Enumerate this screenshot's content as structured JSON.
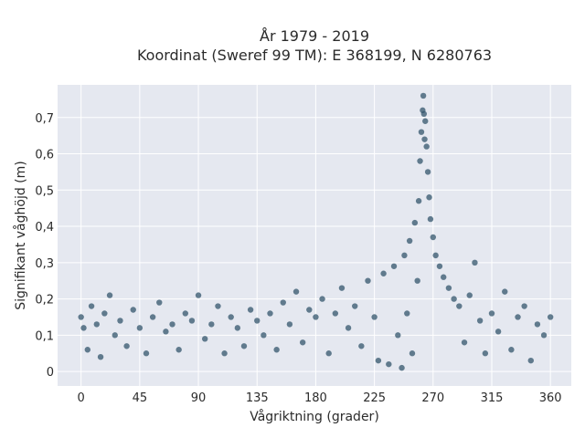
{
  "chart_data": {
    "type": "scatter",
    "title": "År 1979 - 2019",
    "subtitle": "Koordinat (Sweref 99 TM): E 368199, N 6280763",
    "xlabel": "Vågriktning (grader)",
    "ylabel": "Signifikant våghöjd (m)",
    "xlim": [
      -18,
      376
    ],
    "ylim": [
      -0.04,
      0.79
    ],
    "xticks": [
      0,
      45,
      90,
      135,
      180,
      225,
      270,
      315,
      360
    ],
    "xtick_labels": [
      "0",
      "45",
      "90",
      "135",
      "180",
      "225",
      "270",
      "315",
      "360"
    ],
    "yticks": [
      0,
      0.1,
      0.2,
      0.3,
      0.4,
      0.5,
      0.6,
      0.7
    ],
    "ytick_labels": [
      "0",
      "0,1",
      "0,2",
      "0,3",
      "0,4",
      "0,5",
      "0,6",
      "0,7"
    ],
    "grid": true,
    "background": "#e5e8f0",
    "marker_color": "#33566c",
    "points": [
      [
        0,
        0.15
      ],
      [
        2,
        0.12
      ],
      [
        5,
        0.06
      ],
      [
        8,
        0.18
      ],
      [
        12,
        0.13
      ],
      [
        15,
        0.04
      ],
      [
        18,
        0.16
      ],
      [
        22,
        0.21
      ],
      [
        26,
        0.1
      ],
      [
        30,
        0.14
      ],
      [
        35,
        0.07
      ],
      [
        40,
        0.17
      ],
      [
        45,
        0.12
      ],
      [
        50,
        0.05
      ],
      [
        55,
        0.15
      ],
      [
        60,
        0.19
      ],
      [
        65,
        0.11
      ],
      [
        70,
        0.13
      ],
      [
        75,
        0.06
      ],
      [
        80,
        0.16
      ],
      [
        85,
        0.14
      ],
      [
        90,
        0.21
      ],
      [
        95,
        0.09
      ],
      [
        100,
        0.13
      ],
      [
        105,
        0.18
      ],
      [
        110,
        0.05
      ],
      [
        115,
        0.15
      ],
      [
        120,
        0.12
      ],
      [
        125,
        0.07
      ],
      [
        130,
        0.17
      ],
      [
        135,
        0.14
      ],
      [
        140,
        0.1
      ],
      [
        145,
        0.16
      ],
      [
        150,
        0.06
      ],
      [
        155,
        0.19
      ],
      [
        160,
        0.13
      ],
      [
        165,
        0.22
      ],
      [
        170,
        0.08
      ],
      [
        175,
        0.17
      ],
      [
        180,
        0.15
      ],
      [
        185,
        0.2
      ],
      [
        190,
        0.05
      ],
      [
        195,
        0.16
      ],
      [
        200,
        0.23
      ],
      [
        205,
        0.12
      ],
      [
        210,
        0.18
      ],
      [
        215,
        0.07
      ],
      [
        220,
        0.25
      ],
      [
        225,
        0.15
      ],
      [
        228,
        0.03
      ],
      [
        232,
        0.27
      ],
      [
        236,
        0.02
      ],
      [
        240,
        0.29
      ],
      [
        243,
        0.1
      ],
      [
        246,
        0.01
      ],
      [
        248,
        0.32
      ],
      [
        250,
        0.16
      ],
      [
        252,
        0.36
      ],
      [
        254,
        0.05
      ],
      [
        256,
        0.41
      ],
      [
        258,
        0.25
      ],
      [
        259,
        0.47
      ],
      [
        260,
        0.58
      ],
      [
        261,
        0.66
      ],
      [
        262,
        0.72
      ],
      [
        262.5,
        0.76
      ],
      [
        263,
        0.71
      ],
      [
        263.5,
        0.64
      ],
      [
        264,
        0.69
      ],
      [
        265,
        0.62
      ],
      [
        266,
        0.55
      ],
      [
        267,
        0.48
      ],
      [
        268,
        0.42
      ],
      [
        270,
        0.37
      ],
      [
        272,
        0.32
      ],
      [
        275,
        0.29
      ],
      [
        278,
        0.26
      ],
      [
        282,
        0.23
      ],
      [
        286,
        0.2
      ],
      [
        290,
        0.18
      ],
      [
        294,
        0.08
      ],
      [
        298,
        0.21
      ],
      [
        302,
        0.3
      ],
      [
        306,
        0.14
      ],
      [
        310,
        0.05
      ],
      [
        315,
        0.16
      ],
      [
        320,
        0.11
      ],
      [
        325,
        0.22
      ],
      [
        330,
        0.06
      ],
      [
        335,
        0.15
      ],
      [
        340,
        0.18
      ],
      [
        345,
        0.03
      ],
      [
        350,
        0.13
      ],
      [
        355,
        0.1
      ],
      [
        360,
        0.15
      ]
    ]
  }
}
